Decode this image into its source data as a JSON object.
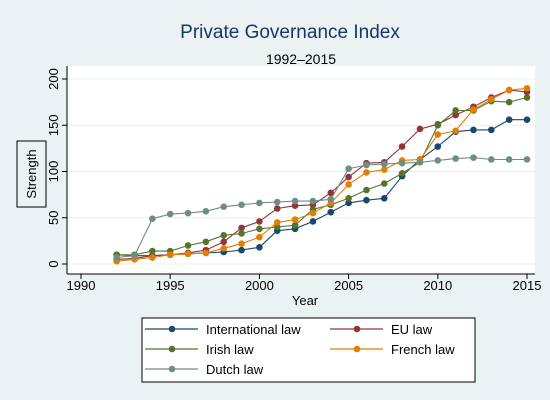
{
  "chart_data": {
    "type": "line",
    "title": "Private Governance Index",
    "subtitle": "1992–2015",
    "xlabel": "Year",
    "ylabel": "Strength",
    "xlim": [
      1990,
      2015
    ],
    "ylim": [
      0,
      200
    ],
    "x_ticks": [
      1990,
      1995,
      2000,
      2005,
      2010,
      2015
    ],
    "y_ticks": [
      0,
      50,
      100,
      150,
      200
    ],
    "grid": "horizontal",
    "legend_position": "bottom",
    "x": [
      1992,
      1993,
      1994,
      1995,
      1996,
      1997,
      1998,
      1999,
      2000,
      2001,
      2002,
      2003,
      2004,
      2005,
      2006,
      2007,
      2008,
      2009,
      2010,
      2011,
      2012,
      2013,
      2014,
      2015
    ],
    "series": [
      {
        "name": "International law",
        "color": "#1a476f",
        "values": [
          10,
          9,
          9,
          10,
          11,
          12,
          13,
          15,
          18,
          36,
          38,
          46,
          56,
          66,
          69,
          71,
          95,
          113,
          127,
          143,
          145,
          145,
          156,
          156
        ]
      },
      {
        "name": "EU law",
        "color": "#90353b",
        "values": [
          5,
          6,
          9,
          10,
          12,
          15,
          24,
          39,
          46,
          60,
          63,
          64,
          77,
          94,
          109,
          110,
          127,
          146,
          151,
          161,
          170,
          180,
          188,
          186
        ]
      },
      {
        "name": "Irish law",
        "color": "#55752f",
        "values": [
          10,
          10,
          14,
          14,
          20,
          24,
          31,
          33,
          38,
          40,
          42,
          59,
          64,
          71,
          80,
          87,
          98,
          110,
          150,
          166,
          166,
          176,
          175,
          180
        ]
      },
      {
        "name": "French law",
        "color": "#e37e00",
        "values": [
          3,
          5,
          7,
          10,
          11,
          12,
          17,
          22,
          29,
          45,
          48,
          55,
          66,
          86,
          99,
          102,
          112,
          113,
          140,
          144,
          167,
          178,
          188,
          190
        ]
      },
      {
        "name": "Dutch law",
        "color": "#6e8e84",
        "values": [
          7,
          9,
          49,
          54,
          55,
          57,
          62,
          64,
          66,
          67,
          68,
          68,
          70,
          103,
          107,
          108,
          109,
          110,
          112,
          114,
          115,
          113,
          113,
          113
        ]
      }
    ]
  }
}
